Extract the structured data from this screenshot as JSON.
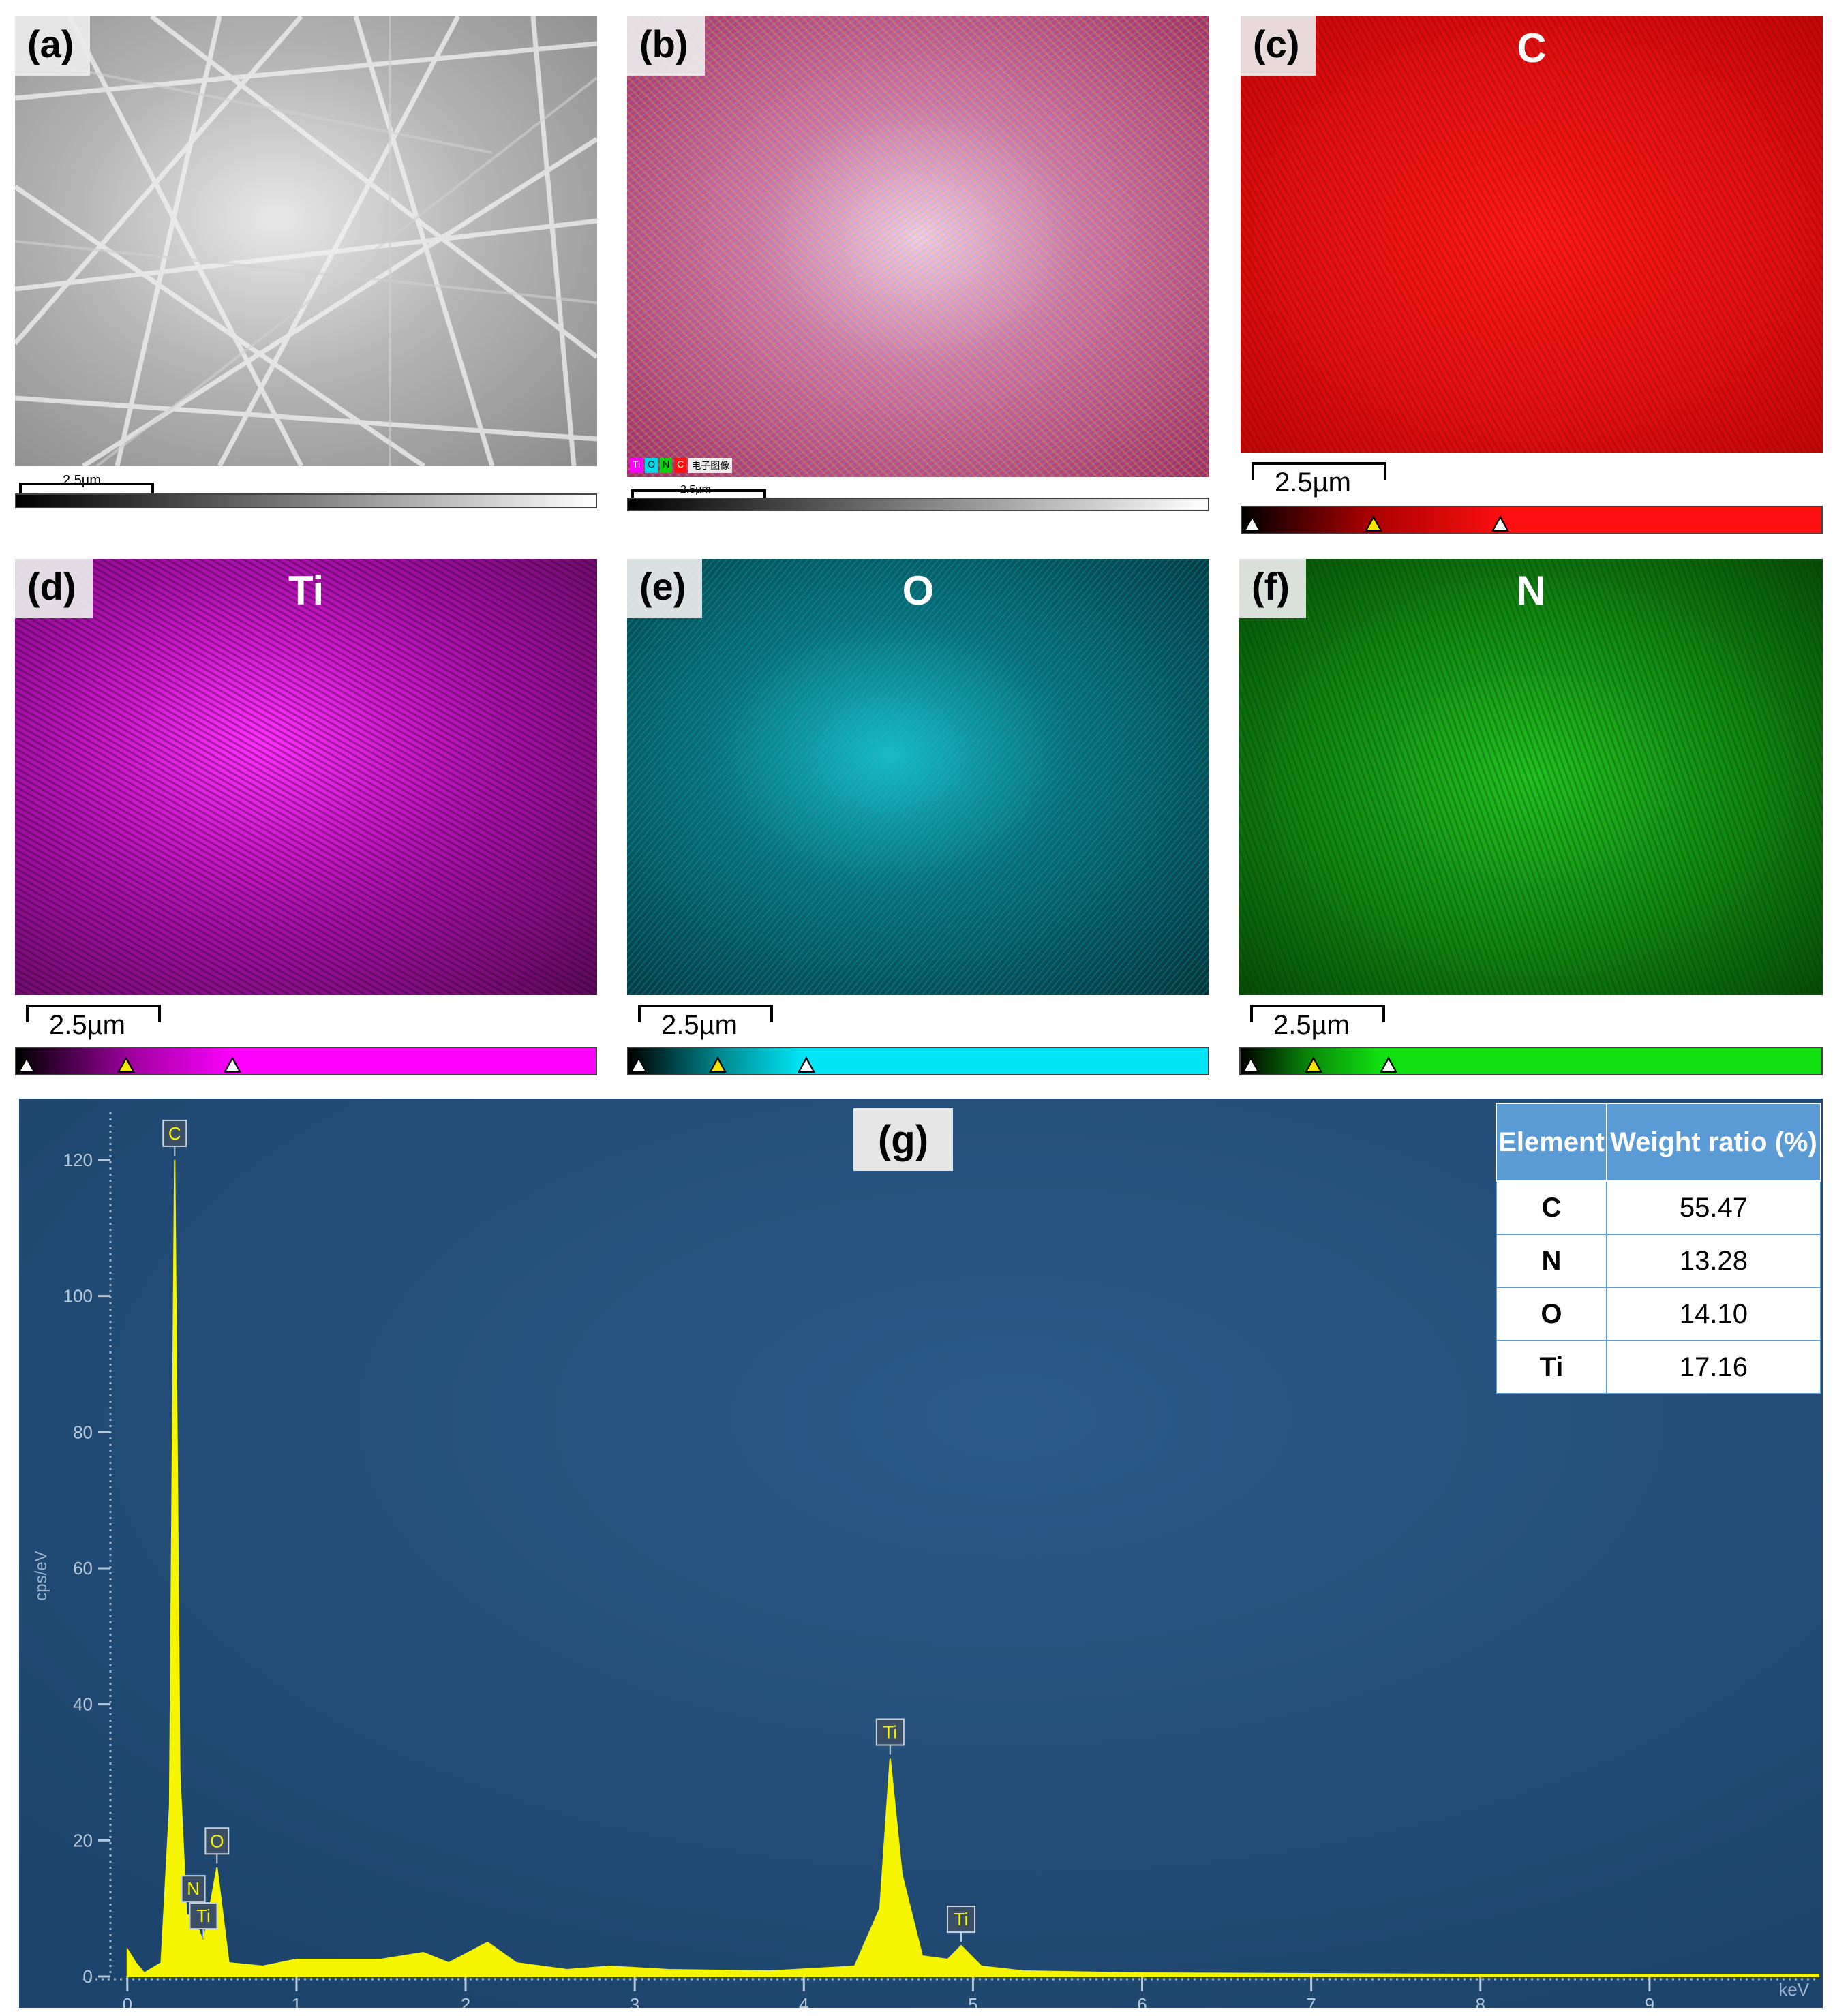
{
  "panels": [
    {
      "label": "(a)",
      "element": "",
      "scale": "2.5µm"
    },
    {
      "label": "(b)",
      "element": "",
      "scale": "2.5µm",
      "legend": [
        "Ti",
        "O",
        "N",
        "C",
        "电子图像"
      ]
    },
    {
      "label": "(c)",
      "element": "C",
      "scale": "2.5µm",
      "color": "#ff1010"
    },
    {
      "label": "(d)",
      "element": "Ti",
      "scale": "2.5µm",
      "color": "#ff00ff"
    },
    {
      "label": "(e)",
      "element": "O",
      "scale": "2.5µm",
      "color": "#00e5f5"
    },
    {
      "label": "(f)",
      "element": "N",
      "scale": "2.5µm",
      "color": "#10e010"
    }
  ],
  "spectrum": {
    "label": "(g)",
    "ylabel": "cps/eV",
    "xunit": "keV",
    "ylim": [
      0,
      125
    ],
    "xlim": [
      -0.1,
      10.0
    ],
    "yticks": [
      0,
      20,
      40,
      60,
      80,
      100,
      120
    ],
    "xticks": [
      0,
      1,
      2,
      3,
      4,
      5,
      6,
      7,
      8,
      9
    ],
    "peaks": [
      {
        "label": "C",
        "x": 0.28,
        "y": 120
      },
      {
        "label": "N",
        "x": 0.39,
        "y": 9
      },
      {
        "label": "Ti",
        "x": 0.45,
        "y": 5
      },
      {
        "label": "O",
        "x": 0.53,
        "y": 16
      },
      {
        "label": "Ti",
        "x": 4.51,
        "y": 32
      },
      {
        "label": "Ti",
        "x": 4.93,
        "y": 4.5
      }
    ]
  },
  "chart_data": {
    "type": "line",
    "ylabel": "cps/eV",
    "xlabel": "keV",
    "ylim": [
      0,
      125
    ],
    "x": [
      0.0,
      0.05,
      0.1,
      0.2,
      0.25,
      0.28,
      0.31,
      0.35,
      0.39,
      0.45,
      0.53,
      0.6,
      0.8,
      1.0,
      1.5,
      1.75,
      1.9,
      2.13,
      2.3,
      2.6,
      2.85,
      3.2,
      3.8,
      4.3,
      4.45,
      4.51,
      4.58,
      4.7,
      4.85,
      4.93,
      5.05,
      5.3,
      6.0,
      7.0,
      8.0,
      9.0,
      10.0
    ],
    "values": [
      4,
      2,
      0.5,
      2,
      25,
      120,
      30,
      9,
      9,
      5,
      16,
      2,
      1.5,
      2.5,
      2.5,
      3.5,
      2,
      5,
      2,
      1,
      1.5,
      1,
      0.8,
      1.5,
      10,
      32,
      15,
      3,
      2.5,
      4.5,
      1.5,
      0.8,
      0.5,
      0.4,
      0.3,
      0.3,
      0.3
    ]
  },
  "table": {
    "headers": [
      "Element",
      "Weight ratio (%)"
    ],
    "rows": [
      {
        "element": "C",
        "value": "55.47"
      },
      {
        "element": "N",
        "value": "13.28"
      },
      {
        "element": "O",
        "value": "14.10"
      },
      {
        "element": "Ti",
        "value": "17.16"
      }
    ]
  }
}
